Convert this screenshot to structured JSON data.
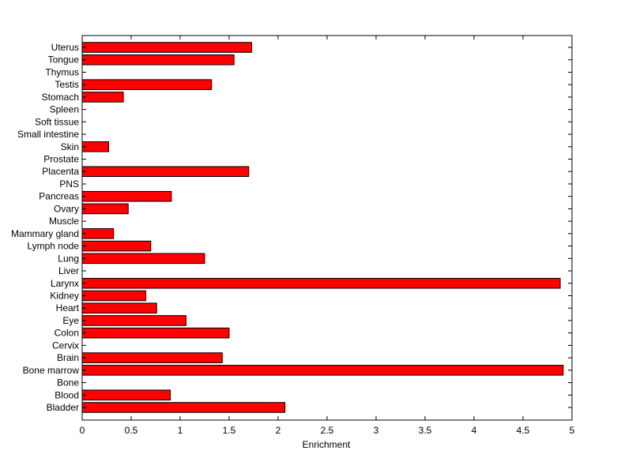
{
  "chart_data": {
    "type": "bar",
    "orientation": "horizontal",
    "title": "",
    "xlabel": "Enrichment",
    "ylabel": "",
    "xlim": [
      0,
      5
    ],
    "xticks": [
      "0",
      "0.5",
      "1",
      "1.5",
      "2",
      "2.5",
      "3",
      "3.5",
      "4",
      "4.5",
      "5"
    ],
    "grid": false,
    "legend": "none",
    "bar_color": "#ff0000",
    "categories": [
      "Bladder",
      "Blood",
      "Bone",
      "Bone marrow",
      "Brain",
      "Cervix",
      "Colon",
      "Eye",
      "Heart",
      "Kidney",
      "Larynx",
      "Liver",
      "Lung",
      "Lymph node",
      "Mammary gland",
      "Muscle",
      "Ovary",
      "Pancreas",
      "PNS",
      "Placenta",
      "Prostate",
      "Skin",
      "Small intestine",
      "Soft tissue",
      "Spleen",
      "Stomach",
      "Testis",
      "Thymus",
      "Tongue",
      "Uterus"
    ],
    "values": [
      2.07,
      0.9,
      0,
      4.91,
      1.43,
      0,
      1.5,
      1.06,
      0.76,
      0.65,
      4.88,
      0,
      1.25,
      0.7,
      0.32,
      0,
      0.47,
      0.91,
      0,
      1.7,
      0,
      0.27,
      0,
      0,
      0,
      0.42,
      1.32,
      0,
      1.55,
      1.73
    ]
  }
}
